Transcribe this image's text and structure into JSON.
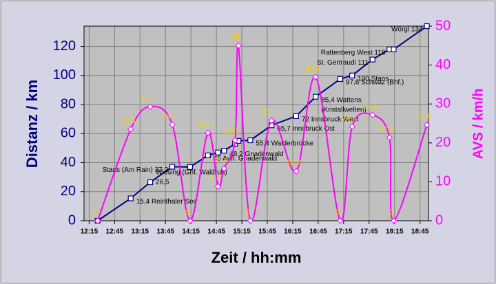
{
  "chart_data": {
    "type": "line",
    "x_label": "Zeit / hh:mm",
    "y_label": "Distanz / km",
    "y2_label": "AVS / km/h",
    "x": [
      745,
      784,
      807,
      833,
      854,
      875,
      887,
      894,
      907,
      911,
      925,
      950,
      979,
      1002,
      1031,
      1045,
      1069,
      1089,
      1094,
      1133
    ],
    "series": [
      {
        "name": "Distanz",
        "color": "#000080",
        "values": [
          0,
          15.4,
          26.5,
          37.2,
          37,
          45,
          47,
          48.2,
          53,
          55,
          55.4,
          65.7,
          72,
          85.4,
          97.6,
          100,
          111,
          118,
          118,
          134
        ],
        "labels": [
          null,
          "15,4 Reinthaler See",
          [
            "Wiesing (Ghf. Waldruh)",
            "26,5"
          ],
          "Stans (Am Rain) 37,2",
          null,
          "45 Aufl. Gnadenwald",
          null,
          "48,2 Gnadenwald",
          null,
          null,
          "55,4 Walderbrücke",
          "65,7 Innsbruck Ost",
          "72 Innsbruck West",
          [
            "85,4 Wattens",
            "(Kristallwelten)"
          ],
          "97,6 Schwaz (Bhf.)",
          "100 Stans",
          "St. Gertraudi 111",
          "Rattenberg West 118",
          null,
          "Wörgl 134"
        ]
      },
      {
        "name": "AVS",
        "color": "#ff00ff",
        "axis": "y2",
        "values": [
          0,
          23.5,
          29.3,
          24.7,
          0,
          22.6,
          8.8,
          13.4,
          20.7,
          45,
          0,
          25.7,
          12.7,
          36.9,
          0,
          24.2,
          27.2,
          21.4,
          0,
          24.6
        ],
        "value_labels": [
          "0",
          "23,5",
          "29,3",
          "24,7",
          "0",
          "22,6",
          "8,8",
          "13,4",
          "20,7",
          "45",
          "0",
          "25,7",
          "12,7",
          "36,9",
          "0",
          "24,2",
          "27,2",
          "21,4",
          "0",
          "24,6"
        ]
      }
    ],
    "xlim": [
      729,
      1135
    ],
    "xticks": [
      {
        "value": 735,
        "label": "12:15"
      },
      {
        "value": 765,
        "label": "12:45"
      },
      {
        "value": 795,
        "label": "13:15"
      },
      {
        "value": 825,
        "label": "13:45"
      },
      {
        "value": 855,
        "label": "14:15"
      },
      {
        "value": 885,
        "label": "14:45"
      },
      {
        "value": 915,
        "label": "15:15"
      },
      {
        "value": 945,
        "label": "15:45"
      },
      {
        "value": 975,
        "label": "16:15"
      },
      {
        "value": 1005,
        "label": "16:45"
      },
      {
        "value": 1035,
        "label": "17:15"
      },
      {
        "value": 1065,
        "label": "17:45"
      },
      {
        "value": 1095,
        "label": "18:15"
      },
      {
        "value": 1125,
        "label": "18:45"
      }
    ],
    "ylim": [
      0,
      134
    ],
    "yticks": [
      0,
      20,
      40,
      60,
      80,
      100,
      120
    ],
    "y2lim": [
      0,
      50
    ],
    "y2ticks": [
      0,
      10,
      20,
      30,
      40,
      50
    ],
    "grid": true
  }
}
